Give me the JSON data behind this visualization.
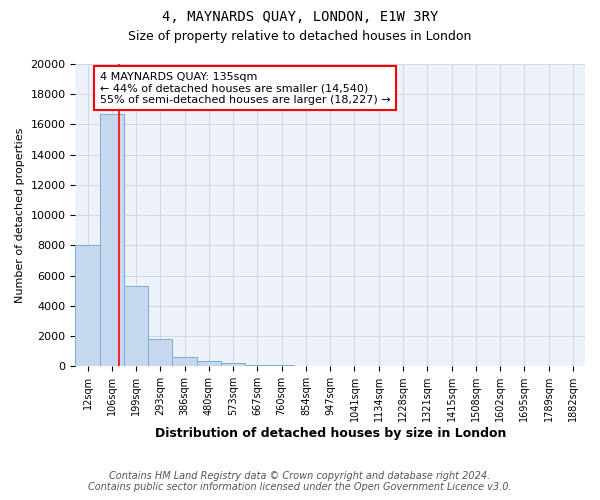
{
  "title": "4, MAYNARDS QUAY, LONDON, E1W 3RY",
  "subtitle": "Size of property relative to detached houses in London",
  "xlabel": "Distribution of detached houses by size in London",
  "ylabel": "Number of detached properties",
  "bin_labels": [
    "12sqm",
    "106sqm",
    "199sqm",
    "293sqm",
    "386sqm",
    "480sqm",
    "573sqm",
    "667sqm",
    "760sqm",
    "854sqm",
    "947sqm",
    "1041sqm",
    "1134sqm",
    "1228sqm",
    "1321sqm",
    "1415sqm",
    "1508sqm",
    "1602sqm",
    "1695sqm",
    "1789sqm",
    "1882sqm"
  ],
  "bar_heights": [
    8050,
    16700,
    5300,
    1800,
    600,
    350,
    200,
    100,
    60,
    40,
    20,
    10,
    5,
    3,
    2,
    1,
    1,
    1,
    0,
    0,
    0
  ],
  "bar_color": "#c5d8f0",
  "bar_edge_color": "#7aaed6",
  "red_line_x": 1.28,
  "annotation_text": "4 MAYNARDS QUAY: 135sqm\n← 44% of detached houses are smaller (14,540)\n55% of semi-detached houses are larger (18,227) →",
  "annotation_box_color": "white",
  "annotation_box_edge_color": "red",
  "ylim": [
    0,
    20000
  ],
  "yticks": [
    0,
    2000,
    4000,
    6000,
    8000,
    10000,
    12000,
    14000,
    16000,
    18000,
    20000
  ],
  "footnote1": "Contains HM Land Registry data © Crown copyright and database right 2024.",
  "footnote2": "Contains public sector information licensed under the Open Government Licence v3.0.",
  "bg_color": "#edf2fa",
  "grid_color": "#d0d8e8",
  "title_fontsize": 10,
  "subtitle_fontsize": 9,
  "annot_fontsize": 8,
  "ylabel_fontsize": 8,
  "xlabel_fontsize": 9,
  "xtick_fontsize": 7,
  "ytick_fontsize": 8,
  "footnote_fontsize": 7
}
